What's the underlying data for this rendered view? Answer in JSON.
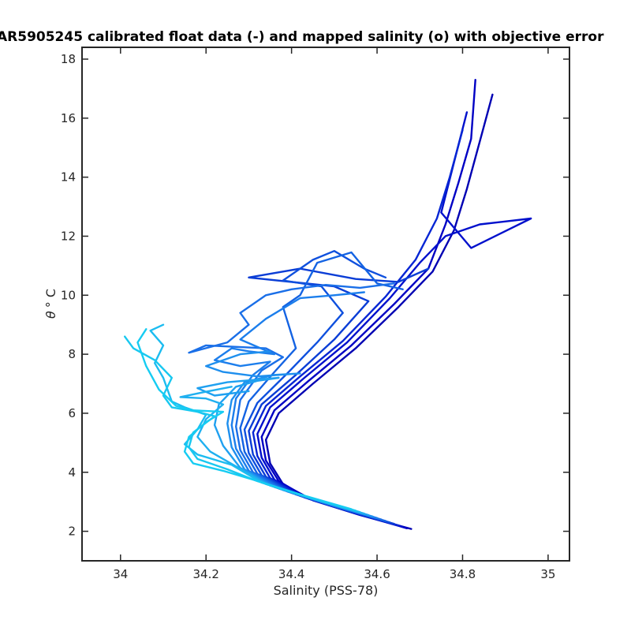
{
  "chart_data": {
    "type": "line",
    "title": "AR5905245 calibrated float data (-) and mapped salinity (o) with objective error",
    "xlabel": "Salinity (PSS-78)",
    "ylabel_symbol": "θ",
    "ylabel_unit": "° C",
    "xlim": [
      33.91,
      35.05
    ],
    "ylim": [
      1.0,
      18.4
    ],
    "x_ticks": [
      34,
      34.2,
      34.4,
      34.6,
      34.8,
      35
    ],
    "x_tick_labels": [
      "34",
      "34.2",
      "34.4",
      "34.6",
      "34.8",
      "35"
    ],
    "y_ticks": [
      2,
      4,
      6,
      8,
      10,
      12,
      14,
      16,
      18
    ],
    "y_tick_labels": [
      "2",
      "4",
      "6",
      "8",
      "10",
      "12",
      "14",
      "16",
      "18"
    ],
    "grid": false,
    "colormap": [
      "#0000b3",
      "#0a3dd6",
      "#1a6fe8",
      "#1fa7f0",
      "#18c8f0"
    ],
    "series": [
      {
        "color": "#0000b3",
        "points": [
          [
            34.68,
            2.08
          ],
          [
            34.56,
            2.55
          ],
          [
            34.45,
            3.05
          ],
          [
            34.38,
            3.6
          ],
          [
            34.35,
            4.3
          ],
          [
            34.34,
            5.1
          ],
          [
            34.37,
            6.0
          ],
          [
            34.45,
            7.0
          ],
          [
            34.55,
            8.2
          ],
          [
            34.65,
            9.6
          ],
          [
            34.73,
            10.8
          ],
          [
            34.78,
            12.2
          ],
          [
            34.81,
            13.6
          ],
          [
            34.84,
            15.2
          ],
          [
            34.87,
            16.8
          ]
        ]
      },
      {
        "color": "#0000c4",
        "points": [
          [
            34.67,
            2.1
          ],
          [
            34.55,
            2.6
          ],
          [
            34.44,
            3.1
          ],
          [
            34.37,
            3.7
          ],
          [
            34.34,
            4.4
          ],
          [
            34.33,
            5.2
          ],
          [
            34.36,
            6.1
          ],
          [
            34.44,
            7.1
          ],
          [
            34.54,
            8.3
          ],
          [
            34.64,
            9.7
          ],
          [
            34.72,
            10.9
          ],
          [
            34.76,
            12.4
          ],
          [
            34.79,
            13.8
          ],
          [
            34.82,
            15.3
          ],
          [
            34.83,
            17.3
          ]
        ]
      },
      {
        "color": "#0010cc",
        "points": [
          [
            34.66,
            2.15
          ],
          [
            34.54,
            2.65
          ],
          [
            34.43,
            3.15
          ],
          [
            34.36,
            3.75
          ],
          [
            34.33,
            4.5
          ],
          [
            34.32,
            5.3
          ],
          [
            34.35,
            6.2
          ],
          [
            34.43,
            7.2
          ],
          [
            34.53,
            8.4
          ],
          [
            34.63,
            9.9
          ],
          [
            34.7,
            11.1
          ],
          [
            34.76,
            12.0
          ],
          [
            34.84,
            12.4
          ],
          [
            34.96,
            12.6
          ],
          [
            34.82,
            11.6
          ],
          [
            34.75,
            12.8
          ],
          [
            34.78,
            14.5
          ],
          [
            34.81,
            16.2
          ]
        ]
      },
      {
        "color": "#0525d4",
        "points": [
          [
            34.65,
            2.2
          ],
          [
            34.53,
            2.7
          ],
          [
            34.42,
            3.2
          ],
          [
            34.35,
            3.8
          ],
          [
            34.32,
            4.55
          ],
          [
            34.31,
            5.35
          ],
          [
            34.34,
            6.25
          ],
          [
            34.42,
            7.25
          ],
          [
            34.52,
            8.45
          ],
          [
            34.62,
            9.95
          ],
          [
            34.69,
            11.2
          ],
          [
            34.74,
            12.6
          ],
          [
            34.77,
            14.0
          ],
          [
            34.8,
            15.6
          ]
        ]
      },
      {
        "color": "#0a3dd6",
        "points": [
          [
            34.64,
            2.25
          ],
          [
            34.52,
            2.75
          ],
          [
            34.41,
            3.25
          ],
          [
            34.34,
            3.85
          ],
          [
            34.31,
            4.6
          ],
          [
            34.3,
            5.4
          ],
          [
            34.33,
            6.3
          ],
          [
            34.41,
            7.3
          ],
          [
            34.5,
            8.5
          ],
          [
            34.58,
            9.8
          ],
          [
            34.5,
            10.3
          ],
          [
            34.3,
            10.6
          ],
          [
            34.42,
            10.9
          ],
          [
            34.55,
            10.55
          ],
          [
            34.65,
            10.45
          ],
          [
            34.72,
            10.9
          ]
        ]
      },
      {
        "color": "#0f50de",
        "points": [
          [
            34.63,
            2.3
          ],
          [
            34.51,
            2.8
          ],
          [
            34.4,
            3.3
          ],
          [
            34.33,
            3.9
          ],
          [
            34.3,
            4.65
          ],
          [
            34.29,
            5.45
          ],
          [
            34.32,
            6.35
          ],
          [
            34.39,
            7.35
          ],
          [
            34.46,
            8.4
          ],
          [
            34.52,
            9.4
          ],
          [
            34.47,
            10.3
          ],
          [
            34.38,
            10.5
          ],
          [
            34.45,
            11.2
          ],
          [
            34.5,
            11.5
          ],
          [
            34.57,
            10.9
          ],
          [
            34.62,
            10.6
          ]
        ]
      },
      {
        "color": "#1463e3",
        "points": [
          [
            34.62,
            2.35
          ],
          [
            34.5,
            2.85
          ],
          [
            34.39,
            3.35
          ],
          [
            34.32,
            3.95
          ],
          [
            34.29,
            4.7
          ],
          [
            34.28,
            5.5
          ],
          [
            34.3,
            6.4
          ],
          [
            34.36,
            7.4
          ],
          [
            34.41,
            8.2
          ],
          [
            34.38,
            9.6
          ],
          [
            34.42,
            10.0
          ],
          [
            34.46,
            11.1
          ],
          [
            34.54,
            11.45
          ],
          [
            34.6,
            10.4
          ],
          [
            34.66,
            10.2
          ]
        ]
      },
      {
        "color": "#1a6fe8",
        "points": [
          [
            34.61,
            2.4
          ],
          [
            34.49,
            2.9
          ],
          [
            34.38,
            3.4
          ],
          [
            34.31,
            4.0
          ],
          [
            34.28,
            4.75
          ],
          [
            34.27,
            5.55
          ],
          [
            34.28,
            6.45
          ],
          [
            34.33,
            7.45
          ],
          [
            34.38,
            7.9
          ],
          [
            34.34,
            8.2
          ],
          [
            34.2,
            8.3
          ],
          [
            34.16,
            8.05
          ],
          [
            34.25,
            8.4
          ],
          [
            34.3,
            9.0
          ],
          [
            34.28,
            9.4
          ],
          [
            34.34,
            10.0
          ],
          [
            34.4,
            10.2
          ],
          [
            34.48,
            10.35
          ],
          [
            34.56,
            10.25
          ],
          [
            34.64,
            10.4
          ]
        ]
      },
      {
        "color": "#1c7eec",
        "points": [
          [
            34.6,
            2.45
          ],
          [
            34.48,
            2.95
          ],
          [
            34.37,
            3.45
          ],
          [
            34.3,
            4.05
          ],
          [
            34.27,
            4.8
          ],
          [
            34.26,
            5.6
          ],
          [
            34.27,
            6.5
          ],
          [
            34.31,
            7.3
          ],
          [
            34.35,
            7.75
          ],
          [
            34.28,
            7.6
          ],
          [
            34.22,
            7.8
          ],
          [
            34.26,
            8.2
          ],
          [
            34.3,
            8.1
          ],
          [
            34.36,
            8.0
          ],
          [
            34.28,
            8.5
          ],
          [
            34.34,
            9.2
          ],
          [
            34.42,
            9.9
          ],
          [
            34.5,
            10.0
          ],
          [
            34.57,
            10.1
          ]
        ]
      },
      {
        "color": "#1e8fee",
        "points": [
          [
            34.59,
            2.5
          ],
          [
            34.47,
            3.0
          ],
          [
            34.36,
            3.5
          ],
          [
            34.29,
            4.1
          ],
          [
            34.26,
            4.85
          ],
          [
            34.25,
            5.65
          ],
          [
            34.26,
            6.45
          ],
          [
            34.29,
            7.05
          ],
          [
            34.36,
            7.3
          ],
          [
            34.42,
            7.35
          ],
          [
            34.32,
            7.25
          ],
          [
            34.24,
            7.4
          ],
          [
            34.2,
            7.6
          ],
          [
            34.28,
            8.0
          ],
          [
            34.35,
            8.1
          ]
        ]
      },
      {
        "color": "#1fa0f0",
        "points": [
          [
            34.58,
            2.55
          ],
          [
            34.46,
            3.05
          ],
          [
            34.35,
            3.55
          ],
          [
            34.28,
            4.15
          ],
          [
            34.24,
            4.9
          ],
          [
            34.22,
            5.6
          ],
          [
            34.23,
            6.3
          ],
          [
            34.27,
            6.9
          ],
          [
            34.32,
            7.1
          ],
          [
            34.37,
            7.2
          ],
          [
            34.25,
            7.05
          ],
          [
            34.18,
            6.85
          ],
          [
            34.22,
            6.6
          ],
          [
            34.3,
            6.75
          ]
        ]
      },
      {
        "color": "#1fb0f0",
        "points": [
          [
            34.57,
            2.6
          ],
          [
            34.45,
            3.1
          ],
          [
            34.34,
            3.6
          ],
          [
            34.27,
            4.2
          ],
          [
            34.21,
            4.7
          ],
          [
            34.18,
            5.2
          ],
          [
            34.2,
            5.8
          ],
          [
            34.24,
            6.3
          ],
          [
            34.2,
            6.5
          ],
          [
            34.14,
            6.55
          ],
          [
            34.19,
            6.7
          ],
          [
            34.26,
            6.9
          ]
        ]
      },
      {
        "color": "#1cbcf0",
        "points": [
          [
            34.56,
            2.65
          ],
          [
            34.44,
            3.15
          ],
          [
            34.33,
            3.65
          ],
          [
            34.26,
            4.25
          ],
          [
            34.18,
            4.6
          ],
          [
            34.15,
            4.95
          ],
          [
            34.18,
            5.45
          ],
          [
            34.2,
            5.95
          ],
          [
            34.15,
            6.2
          ],
          [
            34.12,
            6.4
          ],
          [
            34.1,
            7.2
          ],
          [
            34.08,
            7.7
          ],
          [
            34.1,
            8.3
          ],
          [
            34.07,
            8.8
          ],
          [
            34.1,
            9.0
          ]
        ]
      },
      {
        "color": "#18c8f0",
        "points": [
          [
            34.55,
            2.7
          ],
          [
            34.43,
            3.2
          ],
          [
            34.32,
            3.7
          ],
          [
            34.25,
            4.1
          ],
          [
            34.18,
            4.45
          ],
          [
            34.16,
            4.85
          ],
          [
            34.17,
            5.35
          ],
          [
            34.22,
            5.9
          ],
          [
            34.18,
            6.05
          ],
          [
            34.12,
            6.2
          ],
          [
            34.1,
            6.6
          ],
          [
            34.12,
            7.2
          ],
          [
            34.08,
            7.8
          ],
          [
            34.03,
            8.2
          ],
          [
            34.01,
            8.6
          ]
        ]
      },
      {
        "color": "#16ccf2",
        "points": [
          [
            34.54,
            2.75
          ],
          [
            34.42,
            3.25
          ],
          [
            34.31,
            3.75
          ],
          [
            34.24,
            4.05
          ],
          [
            34.17,
            4.3
          ],
          [
            34.15,
            4.7
          ],
          [
            34.16,
            5.2
          ],
          [
            34.2,
            5.7
          ],
          [
            34.24,
            6.05
          ],
          [
            34.17,
            6.1
          ],
          [
            34.13,
            6.25
          ],
          [
            34.09,
            6.8
          ],
          [
            34.06,
            7.6
          ],
          [
            34.04,
            8.4
          ],
          [
            34.06,
            8.85
          ]
        ]
      }
    ]
  }
}
